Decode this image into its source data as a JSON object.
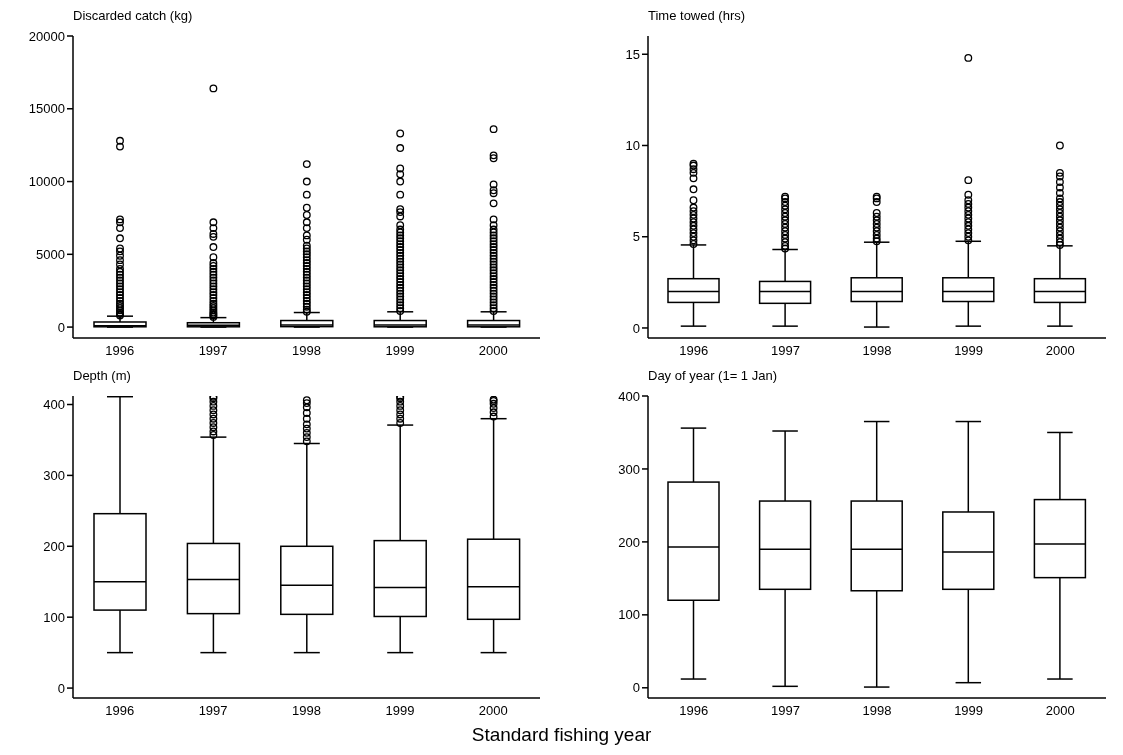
{
  "chart_data": [
    {
      "type": "box",
      "ylabel": "Discarded catch (kg)",
      "categories": [
        "1996",
        "1997",
        "1998",
        "1999",
        "2000"
      ],
      "ylim": [
        -750,
        20000
      ],
      "yticks": [
        0,
        5000,
        10000,
        15000,
        20000
      ],
      "boxes": [
        {
          "low": 0,
          "q1": 20,
          "median": 100,
          "q3": 350,
          "high": 750,
          "outliers": [
            800,
            900,
            1000,
            1150,
            1300,
            1450,
            1600,
            1800,
            2000,
            2200,
            2400,
            2600,
            2800,
            3000,
            3200,
            3400,
            3600,
            3800,
            4000,
            4300,
            4600,
            4900,
            5200,
            5400,
            6100,
            6800,
            7200,
            7400,
            12400,
            12800
          ]
        },
        {
          "low": 0,
          "q1": 20,
          "median": 120,
          "q3": 300,
          "high": 650,
          "outliers": [
            700,
            800,
            900,
            1000,
            1150,
            1300,
            1450,
            1600,
            1800,
            2000,
            2200,
            2400,
            2600,
            2800,
            3000,
            3200,
            3400,
            3600,
            3800,
            4000,
            4200,
            4400,
            4800,
            5500,
            6200,
            6400,
            6800,
            7200,
            16400
          ]
        },
        {
          "low": 0,
          "q1": 30,
          "median": 150,
          "q3": 450,
          "high": 1000,
          "outliers": [
            1050,
            1200,
            1400,
            1600,
            1800,
            2000,
            2200,
            2400,
            2600,
            2800,
            3000,
            3200,
            3400,
            3600,
            3800,
            4000,
            4200,
            4400,
            4600,
            4800,
            5000,
            5200,
            5400,
            5600,
            6000,
            6300,
            6800,
            7200,
            7700,
            8200,
            9100,
            10000,
            11200
          ]
        },
        {
          "low": 0,
          "q1": 20,
          "median": 150,
          "q3": 450,
          "high": 1050,
          "outliers": [
            1100,
            1300,
            1500,
            1700,
            1900,
            2100,
            2300,
            2500,
            2700,
            2900,
            3100,
            3300,
            3500,
            3700,
            3900,
            4100,
            4300,
            4500,
            4700,
            4900,
            5100,
            5300,
            5500,
            5700,
            5900,
            6100,
            6300,
            6500,
            6700,
            7000,
            7600,
            7900,
            8100,
            9100,
            10000,
            10500,
            10900,
            12300,
            13300
          ]
        },
        {
          "low": 0,
          "q1": 20,
          "median": 150,
          "q3": 450,
          "high": 1050,
          "outliers": [
            1100,
            1300,
            1500,
            1700,
            1900,
            2100,
            2300,
            2500,
            2700,
            2900,
            3100,
            3300,
            3500,
            3700,
            3900,
            4100,
            4300,
            4500,
            4700,
            4900,
            5100,
            5300,
            5500,
            5700,
            5900,
            6100,
            6300,
            6500,
            6700,
            7000,
            7400,
            8500,
            9200,
            9400,
            9800,
            11600,
            11800,
            13600
          ]
        }
      ]
    },
    {
      "type": "box",
      "ylabel": "Time towed (hrs)",
      "categories": [
        "1996",
        "1997",
        "1998",
        "1999",
        "2000"
      ],
      "ylim": [
        -0.55,
        16
      ],
      "yticks": [
        0,
        5,
        10,
        15
      ],
      "boxes": [
        {
          "low": 0.1,
          "q1": 1.4,
          "median": 2.0,
          "q3": 2.7,
          "high": 4.55,
          "outliers": [
            4.6,
            4.8,
            5.0,
            5.2,
            5.4,
            5.6,
            5.8,
            6.0,
            6.2,
            6.4,
            6.6,
            7.0,
            7.6,
            8.2,
            8.5,
            8.7,
            8.9,
            9.0
          ]
        },
        {
          "low": 0.1,
          "q1": 1.35,
          "median": 2.0,
          "q3": 2.55,
          "high": 4.3,
          "outliers": [
            4.35,
            4.5,
            4.7,
            4.9,
            5.1,
            5.3,
            5.5,
            5.7,
            5.9,
            6.1,
            6.3,
            6.5,
            6.7,
            6.9,
            7.1,
            7.2
          ]
        },
        {
          "low": 0.05,
          "q1": 1.45,
          "median": 2.0,
          "q3": 2.75,
          "high": 4.7,
          "outliers": [
            4.75,
            4.9,
            5.1,
            5.3,
            5.5,
            5.7,
            5.9,
            6.1,
            6.3,
            6.9,
            7.1,
            7.2
          ]
        },
        {
          "low": 0.1,
          "q1": 1.45,
          "median": 2.0,
          "q3": 2.75,
          "high": 4.75,
          "outliers": [
            4.8,
            5.0,
            5.2,
            5.4,
            5.6,
            5.8,
            6.0,
            6.2,
            6.4,
            6.6,
            6.8,
            7.0,
            7.3,
            8.1,
            14.8
          ]
        },
        {
          "low": 0.1,
          "q1": 1.4,
          "median": 2.0,
          "q3": 2.7,
          "high": 4.5,
          "outliers": [
            4.55,
            4.7,
            4.9,
            5.1,
            5.3,
            5.5,
            5.7,
            5.9,
            6.1,
            6.3,
            6.5,
            6.7,
            6.9,
            7.1,
            7.4,
            7.7,
            8.0,
            8.3,
            8.5,
            10.0
          ]
        }
      ]
    },
    {
      "type": "box",
      "ylabel": "Depth (m)",
      "xlabel": "Standard fishing year",
      "categories": [
        "1996",
        "1997",
        "1998",
        "1999",
        "2000"
      ],
      "ylim": [
        -14,
        412
      ],
      "yticks": [
        0,
        100,
        200,
        300,
        400
      ],
      "boxes": [
        {
          "low": 50,
          "q1": 110,
          "median": 150,
          "q3": 246,
          "high": 411
        },
        {
          "low": 50,
          "q1": 105,
          "median": 153,
          "q3": 204,
          "high": 354,
          "outliers": [
            357,
            362,
            368,
            374,
            380,
            386,
            392,
            398,
            404,
            409,
            411
          ]
        },
        {
          "low": 50,
          "q1": 104,
          "median": 145,
          "q3": 200,
          "high": 345,
          "outliers": [
            348,
            354,
            360,
            366,
            372,
            380,
            388,
            396,
            402,
            406
          ]
        },
        {
          "low": 50,
          "q1": 101,
          "median": 142,
          "q3": 208,
          "high": 371,
          "outliers": [
            374,
            380,
            386,
            392,
            398,
            404,
            409,
            411
          ]
        },
        {
          "low": 50,
          "q1": 97,
          "median": 143,
          "q3": 210,
          "high": 380,
          "outliers": [
            383,
            389,
            395,
            401,
            405,
            407
          ]
        }
      ]
    },
    {
      "type": "box",
      "ylabel": "Day of year (1= 1 Jan)",
      "categories": [
        "1996",
        "1997",
        "1998",
        "1999",
        "2000"
      ],
      "ylim": [
        -14,
        400
      ],
      "yticks": [
        0,
        100,
        200,
        300,
        400
      ],
      "boxes": [
        {
          "low": 12,
          "q1": 120,
          "median": 193,
          "q3": 282,
          "high": 356
        },
        {
          "low": 2,
          "q1": 135,
          "median": 190,
          "q3": 256,
          "high": 352
        },
        {
          "low": 1,
          "q1": 133,
          "median": 190,
          "q3": 256,
          "high": 365
        },
        {
          "low": 7,
          "q1": 135,
          "median": 186,
          "q3": 241,
          "high": 365
        },
        {
          "low": 12,
          "q1": 151,
          "median": 197,
          "q3": 258,
          "high": 350
        }
      ]
    }
  ]
}
